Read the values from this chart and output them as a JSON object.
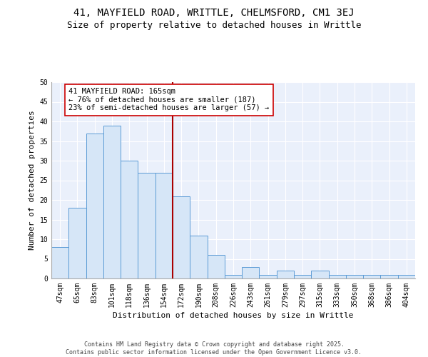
{
  "title": "41, MAYFIELD ROAD, WRITTLE, CHELMSFORD, CM1 3EJ",
  "subtitle": "Size of property relative to detached houses in Writtle",
  "xlabel": "Distribution of detached houses by size in Writtle",
  "ylabel": "Number of detached properties",
  "categories": [
    "47sqm",
    "65sqm",
    "83sqm",
    "101sqm",
    "118sqm",
    "136sqm",
    "154sqm",
    "172sqm",
    "190sqm",
    "208sqm",
    "226sqm",
    "243sqm",
    "261sqm",
    "279sqm",
    "297sqm",
    "315sqm",
    "333sqm",
    "350sqm",
    "368sqm",
    "386sqm",
    "404sqm"
  ],
  "values": [
    8,
    18,
    37,
    39,
    30,
    27,
    27,
    21,
    11,
    6,
    1,
    3,
    1,
    2,
    1,
    2,
    1,
    1,
    1,
    1,
    1
  ],
  "bar_color": "#d6e6f7",
  "bar_edge_color": "#5b9bd5",
  "highlight_line_color": "#aa0000",
  "annotation_text": "41 MAYFIELD ROAD: 165sqm\n← 76% of detached houses are smaller (187)\n23% of semi-detached houses are larger (57) →",
  "annotation_box_color": "#ffffff",
  "annotation_box_edge_color": "#cc0000",
  "ylim": [
    0,
    50
  ],
  "yticks": [
    0,
    5,
    10,
    15,
    20,
    25,
    30,
    35,
    40,
    45,
    50
  ],
  "background_color": "#eaf0fb",
  "grid_color": "#ffffff",
  "footer_text": "Contains HM Land Registry data © Crown copyright and database right 2025.\nContains public sector information licensed under the Open Government Licence v3.0.",
  "title_fontsize": 10,
  "subtitle_fontsize": 9,
  "axis_label_fontsize": 8,
  "tick_fontsize": 7,
  "annotation_fontsize": 7.5,
  "footer_fontsize": 6
}
